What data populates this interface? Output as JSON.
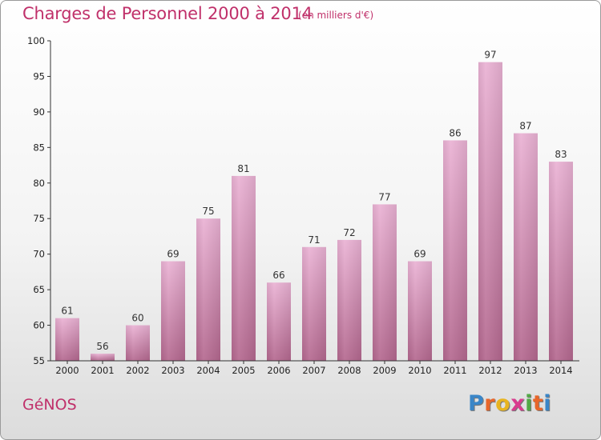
{
  "title": "Charges de Personnel 2000 à 2014",
  "subtitle": "(en milliers d'€)",
  "town": "GéNOS",
  "logo": {
    "letters": [
      "P",
      "r",
      "o",
      "x",
      "i",
      "t",
      "i"
    ],
    "colors": [
      "#3a86c8",
      "#e8662a",
      "#e8b420",
      "#d93b8e",
      "#52a846",
      "#e8662a",
      "#3a86c8"
    ]
  },
  "colors": {
    "title": "#c0306a",
    "bar_light": "#eab2d4",
    "bar_dark": "#b4688f",
    "axis": "#333333"
  },
  "chart_data": {
    "type": "bar",
    "title": "Charges de Personnel 2000 à 2014",
    "subtitle": "(en milliers d'€)",
    "xlabel": "",
    "ylabel": "",
    "categories": [
      "2000",
      "2001",
      "2002",
      "2003",
      "2004",
      "2005",
      "2006",
      "2007",
      "2008",
      "2009",
      "2010",
      "2011",
      "2012",
      "2013",
      "2014"
    ],
    "values": [
      61,
      56,
      60,
      69,
      75,
      81,
      66,
      71,
      72,
      77,
      69,
      86,
      97,
      87,
      83
    ],
    "ylim": [
      55,
      100
    ],
    "yticks": [
      55,
      60,
      65,
      70,
      75,
      80,
      85,
      90,
      95,
      100
    ],
    "grid": false,
    "legend": "none"
  }
}
